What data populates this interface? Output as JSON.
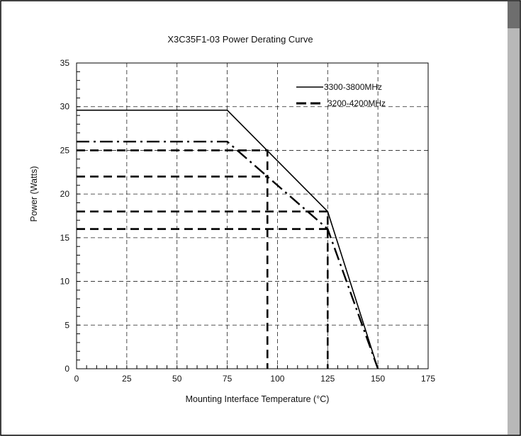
{
  "chart_data": {
    "type": "line",
    "title": "X3C35F1-03 Power Derating Curve",
    "xlabel": "Mounting Interface Temperature (°C)",
    "ylabel": "Power (Watts)",
    "xlim": [
      0,
      175
    ],
    "ylim": [
      0,
      35
    ],
    "xticks": [
      0,
      25,
      50,
      75,
      100,
      125,
      150,
      175
    ],
    "yticks": [
      0,
      5,
      10,
      15,
      20,
      25,
      30,
      35
    ],
    "grid": true,
    "legend_position": "top-right",
    "series": [
      {
        "name": "3300-3800MHz",
        "style": "solid",
        "x": [
          0,
          75,
          125,
          150
        ],
        "y": [
          29.6,
          29.6,
          18,
          0
        ]
      },
      {
        "name": "3200-4200MHz",
        "style": "dashed",
        "x": [
          0,
          75,
          125,
          150
        ],
        "y": [
          26,
          26,
          16,
          0
        ]
      }
    ],
    "reference_lines": [
      {
        "style": "dashed",
        "points": [
          [
            0,
            25
          ],
          [
            95,
            25
          ],
          [
            95,
            0
          ]
        ]
      },
      {
        "style": "dashed",
        "points": [
          [
            0,
            22
          ],
          [
            95,
            22
          ]
        ]
      },
      {
        "style": "dashed",
        "points": [
          [
            0,
            18
          ],
          [
            125,
            18
          ],
          [
            125,
            0
          ]
        ]
      },
      {
        "style": "dashed",
        "points": [
          [
            0,
            16
          ],
          [
            125,
            16
          ]
        ]
      }
    ]
  }
}
